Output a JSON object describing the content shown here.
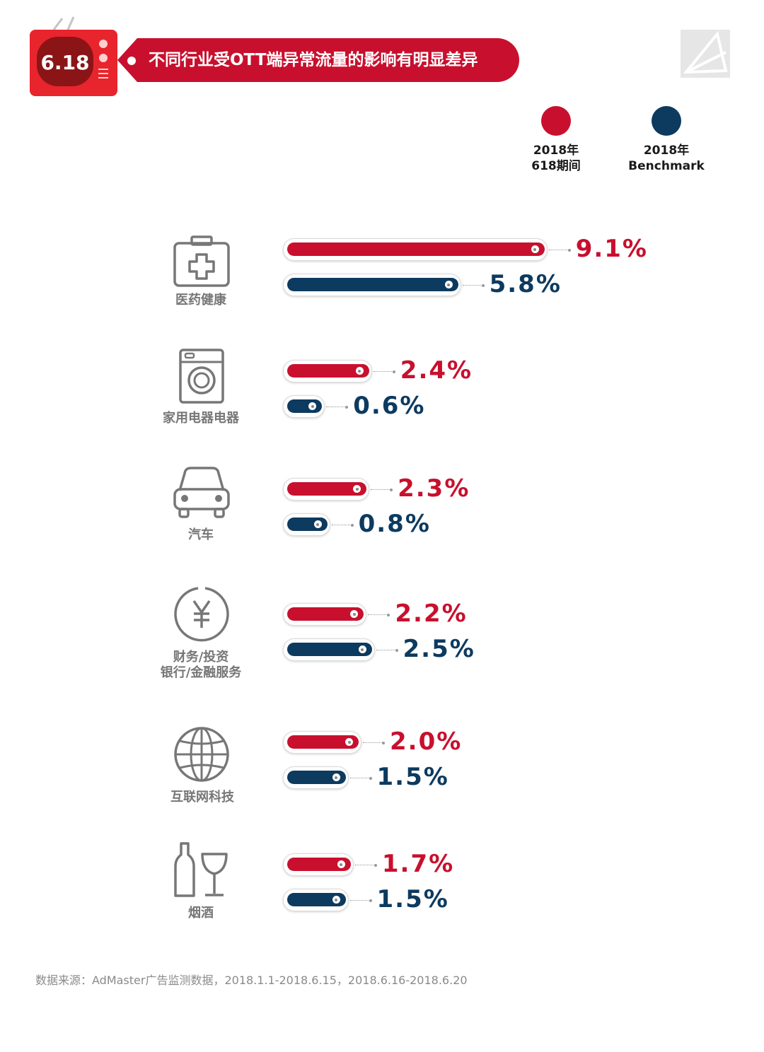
{
  "header": {
    "badge_text": "6.18",
    "title": "不同行业受OTT端异常流量的影响有明显差异"
  },
  "colors": {
    "series_618": "#c8102e",
    "series_benchmark": "#0d3a5f",
    "label_gray": "#777777"
  },
  "legend": [
    {
      "line1": "2018年",
      "line2": "618期间",
      "color": "#c8102e"
    },
    {
      "line1": "2018年",
      "line2": "Benchmark",
      "color": "#0d3a5f"
    }
  ],
  "chart_data": {
    "type": "bar",
    "orientation": "horizontal",
    "categories": [
      "医药健康",
      "家用电器电器",
      "汽车",
      "财务/投资 银行/金融服务",
      "互联网科技",
      "烟酒"
    ],
    "category_icons": [
      "medical-kit-icon",
      "washing-machine-icon",
      "car-icon",
      "yuan-coin-icon",
      "globe-icon",
      "wine-bottle-glass-icon"
    ],
    "series": [
      {
        "name": "2018年 618期间",
        "color": "#c8102e",
        "values": [
          9.1,
          2.4,
          2.3,
          2.2,
          2.0,
          1.7
        ],
        "labels": [
          "9.1%",
          "2.4%",
          "2.3%",
          "2.2%",
          "2.0%",
          "1.7%"
        ]
      },
      {
        "name": "2018年 Benchmark",
        "color": "#0d3a5f",
        "values": [
          5.8,
          0.6,
          0.8,
          2.5,
          1.5,
          1.5
        ],
        "labels": [
          "5.8%",
          "0.6%",
          "0.8%",
          "2.5%",
          "1.5%",
          "1.5%"
        ]
      }
    ],
    "unit": "%",
    "grid": false,
    "legend_position": "top-right"
  },
  "categories_display": [
    {
      "line1": "医药健康",
      "line2": ""
    },
    {
      "line1": "家用电器电器",
      "line2": ""
    },
    {
      "line1": "汽车",
      "line2": ""
    },
    {
      "line1": "财务/投资",
      "line2": "银行/金融服务"
    },
    {
      "line1": "互联网科技",
      "line2": ""
    },
    {
      "line1": "烟酒",
      "line2": ""
    }
  ],
  "footer": {
    "source": "数据来源：AdMaster广告监测数据，2018.1.1-2018.6.15，2018.6.16-2018.6.20"
  }
}
